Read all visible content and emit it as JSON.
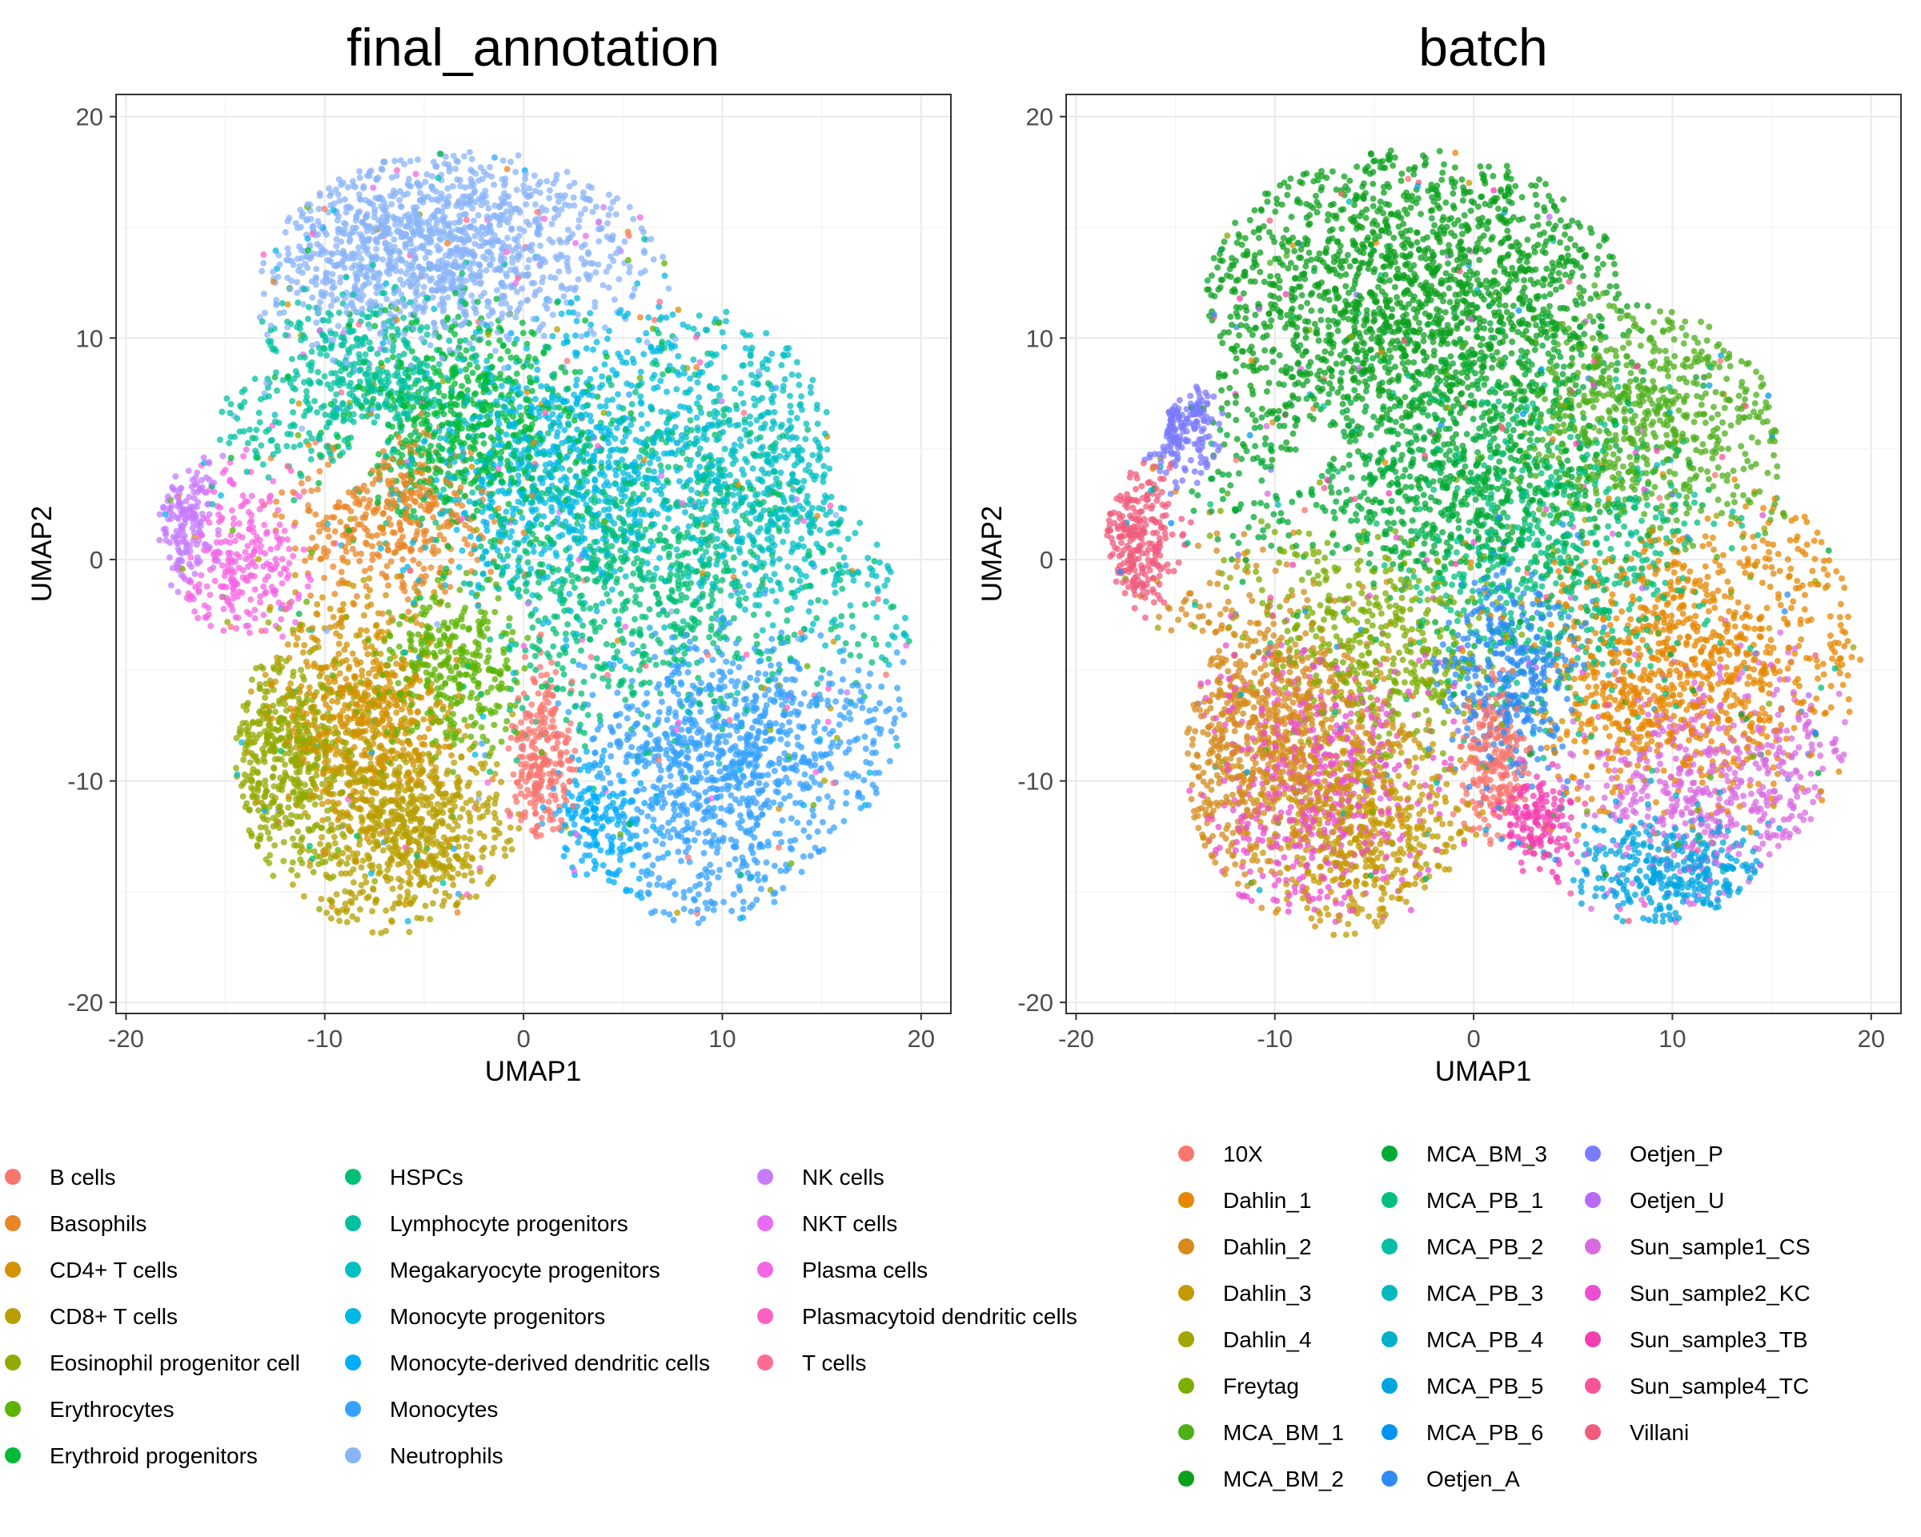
{
  "chart_data": [
    {
      "type": "scatter",
      "title": "final_annotation",
      "xlabel": "UMAP1",
      "ylabel": "UMAP2",
      "xlim": [
        -20.5,
        21.5
      ],
      "ylim": [
        -20.5,
        21.0
      ],
      "x_ticks": [
        -20,
        -10,
        0,
        10,
        20
      ],
      "y_ticks": [
        -20,
        -10,
        0,
        10,
        20
      ],
      "x_tick_labels": [
        "-20",
        "-10",
        "0",
        "10",
        "20"
      ],
      "y_tick_labels": [
        "-20",
        "-10",
        "0",
        "10",
        "20"
      ],
      "grid": true,
      "legend_position": "bottom",
      "legend_columns": 3,
      "legend_title": "",
      "legend": [
        {
          "name": "B cells",
          "color": "#F8766D"
        },
        {
          "name": "Basophils",
          "color": "#E88526"
        },
        {
          "name": "CD4+ T cells",
          "color": "#D39200"
        },
        {
          "name": "CD8+ T cells",
          "color": "#B79F00"
        },
        {
          "name": "Eosinophil progenitor cell",
          "color": "#93AA00"
        },
        {
          "name": "Erythrocytes",
          "color": "#5EB300"
        },
        {
          "name": "Erythroid progenitors",
          "color": "#00BA38"
        },
        {
          "name": "HSPCs",
          "color": "#00BF74"
        },
        {
          "name": "Lymphocyte progenitors",
          "color": "#00C19F"
        },
        {
          "name": "Megakaryocyte progenitors",
          "color": "#00BFC4"
        },
        {
          "name": "Monocyte progenitors",
          "color": "#00B9E3"
        },
        {
          "name": "Monocyte-derived dendritic cells",
          "color": "#00ADFA"
        },
        {
          "name": "Monocytes",
          "color": "#35A2FF"
        },
        {
          "name": "Neutrophils",
          "color": "#8AB4F8"
        },
        {
          "name": "NK cells",
          "color": "#C77CFF"
        },
        {
          "name": "NKT cells",
          "color": "#E76BF3"
        },
        {
          "name": "Plasma cells",
          "color": "#F566E3"
        },
        {
          "name": "Plasmacytoid dendritic cells",
          "color": "#FF61C3"
        },
        {
          "name": "T cells",
          "color": "#FF6C91"
        }
      ],
      "regions": [
        {
          "label": "Neutrophils",
          "center": [
            -5,
            14
          ],
          "spread": [
            7,
            3.5
          ],
          "share": 0.14
        },
        {
          "label": "Monocyte progenitors",
          "center": [
            2,
            4
          ],
          "spread": [
            6,
            5
          ],
          "share": 0.1
        },
        {
          "label": "HSPCs",
          "center": [
            6,
            0
          ],
          "spread": [
            7,
            6
          ],
          "share": 0.08
        },
        {
          "label": "Megakaryocyte progenitors",
          "center": [
            12,
            3
          ],
          "spread": [
            5,
            5
          ],
          "share": 0.06
        },
        {
          "label": "Monocytes",
          "center": [
            10,
            -9
          ],
          "spread": [
            5,
            4.5
          ],
          "share": 0.1
        },
        {
          "label": "Monocyte-derived dendritic cells",
          "center": [
            4,
            -12
          ],
          "spread": [
            2,
            2.5
          ],
          "share": 0.02
        },
        {
          "label": "CD4+ T cells",
          "center": [
            -8,
            -7
          ],
          "spread": [
            3.5,
            4
          ],
          "share": 0.08
        },
        {
          "label": "CD8+ T cells",
          "center": [
            -6,
            -12
          ],
          "spread": [
            3.5,
            3.5
          ],
          "share": 0.08
        },
        {
          "label": "Eosinophil progenitor cell",
          "center": [
            -12,
            -9
          ],
          "spread": [
            3,
            4
          ],
          "share": 0.06
        },
        {
          "label": "Erythrocytes",
          "center": [
            -4,
            -5
          ],
          "spread": [
            3,
            3
          ],
          "share": 0.04
        },
        {
          "label": "B cells",
          "center": [
            1,
            -9
          ],
          "spread": [
            1.2,
            3
          ],
          "share": 0.03
        },
        {
          "label": "NK cells",
          "center": [
            -17,
            2
          ],
          "spread": [
            1.2,
            2
          ],
          "share": 0.02
        },
        {
          "label": "Plasma cells",
          "center": [
            -14,
            0
          ],
          "spread": [
            2,
            2.5
          ],
          "share": 0.02
        },
        {
          "label": "Erythroid progenitors",
          "center": [
            -3,
            6
          ],
          "spread": [
            5,
            4
          ],
          "share": 0.08
        },
        {
          "label": "Lymphocyte progenitors",
          "center": [
            -8,
            8
          ],
          "spread": [
            4,
            3
          ],
          "share": 0.05
        },
        {
          "label": "Basophils",
          "center": [
            -6,
            2
          ],
          "spread": [
            4,
            3
          ],
          "share": 0.04
        }
      ]
    },
    {
      "type": "scatter",
      "title": "batch",
      "xlabel": "UMAP1",
      "ylabel": "UMAP2",
      "xlim": [
        -20.5,
        21.5
      ],
      "ylim": [
        -20.5,
        21.0
      ],
      "x_ticks": [
        -20,
        -10,
        0,
        10,
        20
      ],
      "y_ticks": [
        -20,
        -10,
        0,
        10,
        20
      ],
      "x_tick_labels": [
        "-20",
        "-10",
        "0",
        "10",
        "20"
      ],
      "y_tick_labels": [
        "-20",
        "-10",
        "0",
        "10",
        "20"
      ],
      "grid": true,
      "legend_position": "bottom",
      "legend_columns": 3,
      "legend_title": "",
      "legend": [
        {
          "name": "10X",
          "color": "#F8766D"
        },
        {
          "name": "Dahlin_1",
          "color": "#E58700"
        },
        {
          "name": "Dahlin_2",
          "color": "#D68B1C"
        },
        {
          "name": "Dahlin_3",
          "color": "#C49A00"
        },
        {
          "name": "Dahlin_4",
          "color": "#A3A500"
        },
        {
          "name": "Freytag",
          "color": "#7CAE00"
        },
        {
          "name": "MCA_BM_1",
          "color": "#4DAF1A"
        },
        {
          "name": "MCA_BM_2",
          "color": "#0DA01D"
        },
        {
          "name": "MCA_BM_3",
          "color": "#00A935"
        },
        {
          "name": "MCA_PB_1",
          "color": "#00BF7D"
        },
        {
          "name": "MCA_PB_2",
          "color": "#00BFA5"
        },
        {
          "name": "MCA_PB_3",
          "color": "#00B8BD"
        },
        {
          "name": "MCA_PB_4",
          "color": "#00B0C8"
        },
        {
          "name": "MCA_PB_5",
          "color": "#00A5E0"
        },
        {
          "name": "MCA_PB_6",
          "color": "#0096F0"
        },
        {
          "name": "Oetjen_A",
          "color": "#2E8BF5"
        },
        {
          "name": "Oetjen_P",
          "color": "#7B7BFF"
        },
        {
          "name": "Oetjen_U",
          "color": "#B86BF5"
        },
        {
          "name": "Sun_sample1_CS",
          "color": "#D96BE0"
        },
        {
          "name": "Sun_sample2_KC",
          "color": "#E94FD0"
        },
        {
          "name": "Sun_sample3_TB",
          "color": "#F43FB0"
        },
        {
          "name": "Sun_sample4_TC",
          "color": "#F5549A"
        },
        {
          "name": "Villani",
          "color": "#EF5C7C"
        }
      ],
      "regions": [
        {
          "label": "MCA_BM_2",
          "center": [
            -3,
            12
          ],
          "spread": [
            8,
            5
          ],
          "share": 0.18
        },
        {
          "label": "MCA_BM_3",
          "center": [
            0,
            4
          ],
          "spread": [
            7,
            5
          ],
          "share": 0.1
        },
        {
          "label": "MCA_BM_1",
          "center": [
            8,
            6
          ],
          "spread": [
            5,
            4
          ],
          "share": 0.06
        },
        {
          "label": "Dahlin_1",
          "center": [
            10,
            -5
          ],
          "spread": [
            6,
            5
          ],
          "share": 0.1
        },
        {
          "label": "Dahlin_2",
          "center": [
            -10,
            -8
          ],
          "spread": [
            5,
            5
          ],
          "share": 0.1
        },
        {
          "label": "Dahlin_3",
          "center": [
            -6,
            -12
          ],
          "spread": [
            4,
            4
          ],
          "share": 0.06
        },
        {
          "label": "Sun_sample2_KC",
          "center": [
            -8,
            -10
          ],
          "spread": [
            5,
            5
          ],
          "share": 0.06
        },
        {
          "label": "Sun_sample1_CS",
          "center": [
            12,
            -10
          ],
          "spread": [
            5,
            4
          ],
          "share": 0.05
        },
        {
          "label": "Villani",
          "center": [
            -17,
            1
          ],
          "spread": [
            1.5,
            2.5
          ],
          "share": 0.03
        },
        {
          "label": "10X",
          "center": [
            1,
            -9
          ],
          "spread": [
            1.3,
            3
          ],
          "share": 0.03
        },
        {
          "label": "Oetjen_A",
          "center": [
            2,
            -5
          ],
          "spread": [
            3,
            4
          ],
          "share": 0.05
        },
        {
          "label": "Oetjen_P",
          "center": [
            -15,
            6
          ],
          "spread": [
            1.5,
            1.5
          ],
          "share": 0.02
        },
        {
          "label": "MCA_PB_1",
          "center": [
            4,
            0
          ],
          "spread": [
            6,
            6
          ],
          "share": 0.06
        },
        {
          "label": "Sun_sample3_TB",
          "center": [
            3,
            -12
          ],
          "spread": [
            1.5,
            2
          ],
          "share": 0.02
        },
        {
          "label": "Freytag",
          "center": [
            -5,
            -4
          ],
          "spread": [
            5,
            4
          ],
          "share": 0.04
        },
        {
          "label": "MCA_PB_5",
          "center": [
            10,
            -14
          ],
          "spread": [
            4,
            2
          ],
          "share": 0.04
        }
      ]
    }
  ]
}
